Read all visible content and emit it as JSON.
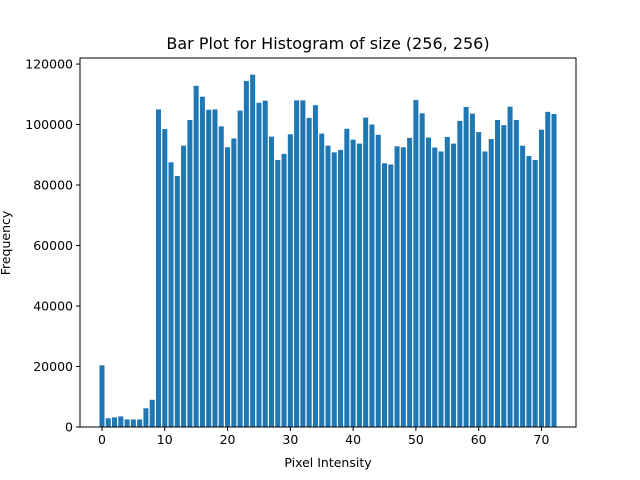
{
  "chart_data": {
    "type": "bar",
    "title": "Bar Plot for Histogram of size (256, 256)",
    "xlabel": "Pixel Intensity",
    "ylabel": "Frequency",
    "x": [
      0,
      1,
      2,
      3,
      4,
      5,
      6,
      7,
      8,
      9,
      10,
      11,
      12,
      13,
      14,
      15,
      16,
      17,
      18,
      19,
      20,
      21,
      22,
      23,
      24,
      25,
      26,
      27,
      28,
      29,
      30,
      31,
      32,
      33,
      34,
      35,
      36,
      37,
      38,
      39,
      40,
      41,
      42,
      43,
      44,
      45,
      46,
      47,
      48,
      49,
      50,
      51,
      52,
      53,
      54,
      55,
      56,
      57,
      58,
      59,
      60,
      61,
      62,
      63,
      64,
      65,
      66,
      67,
      68,
      69,
      70,
      71,
      72
    ],
    "values": [
      20400,
      2900,
      3200,
      3500,
      2500,
      2500,
      2500,
      6200,
      9000,
      105000,
      98500,
      87500,
      83000,
      93000,
      101500,
      112800,
      109200,
      104900,
      105000,
      99400,
      92500,
      95400,
      104600,
      114400,
      116500,
      107200,
      107900,
      96000,
      88300,
      90300,
      96800,
      108000,
      108000,
      102200,
      106400,
      97000,
      93000,
      90800,
      91600,
      98600,
      95000,
      93700,
      102300,
      100000,
      96600,
      87200,
      86800,
      92800,
      92500,
      95600,
      108100,
      103700,
      95700,
      92400,
      91100,
      95900,
      93700,
      101200,
      105800,
      103600,
      97500,
      91100,
      95200,
      101500,
      99800,
      105900,
      101500,
      93000,
      89600,
      88300,
      98300,
      104200,
      103500
    ],
    "xlim": [
      -3.5,
      75.5
    ],
    "ylim": [
      0,
      122000
    ],
    "x_ticks": [
      0,
      10,
      20,
      30,
      40,
      50,
      60,
      70
    ],
    "y_ticks": [
      0,
      20000,
      40000,
      60000,
      80000,
      100000,
      120000
    ],
    "bar_color": "#1f77b4",
    "grid": false,
    "legend": "none"
  }
}
